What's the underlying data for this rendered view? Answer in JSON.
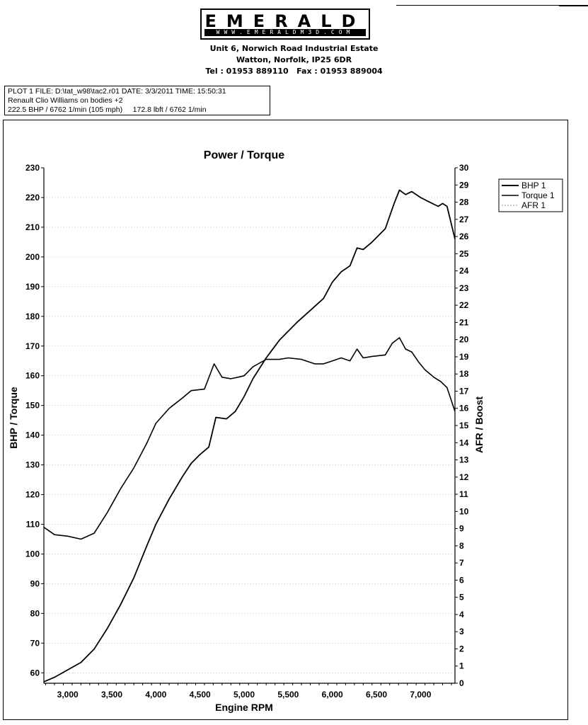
{
  "header": {
    "logo": "EMERALD",
    "logo_web": "WWW.EMERALDM3D.COM",
    "address_line1": "Unit 6, Norwich Road Industrial Estate",
    "address_line2": "Watton, Norfolk, IP25 6DR",
    "phone_line": "Tel : 01953 889110   Fax : 01953 889004"
  },
  "plot_info": {
    "line1": "PLOT 1 FILE: D:\\tat_w98\\tac2.r01  DATE: 3/3/2011  TIME: 15:50:31",
    "line2": "Renault Clio Williams on bodies +2",
    "line3": "222.5 BHP / 6762 1/min (105 mph)     172.8 lbft / 6762 1/min"
  },
  "chart_data": {
    "type": "line",
    "title": "Power / Torque",
    "xlabel": "Engine RPM",
    "ylabel": "BHP / Torque",
    "y2label": "AFR / Boost",
    "xlim": [
      2730,
      7390
    ],
    "ylim": [
      56.5,
      230
    ],
    "y2lim": [
      0,
      30
    ],
    "x_ticks": [
      3000,
      3500,
      4000,
      4500,
      5000,
      5500,
      6000,
      6500,
      7000
    ],
    "x_tick_labels": [
      "3,000",
      "3,500",
      "4,000",
      "4,500",
      "5,000",
      "5,500",
      "6,000",
      "6,500",
      "7,000"
    ],
    "y_ticks": [
      60,
      70,
      80,
      90,
      100,
      110,
      120,
      130,
      140,
      150,
      160,
      170,
      180,
      190,
      200,
      210,
      220,
      230
    ],
    "y2_ticks": [
      0,
      1,
      2,
      3,
      4,
      5,
      6,
      7,
      8,
      9,
      10,
      11,
      12,
      13,
      14,
      15,
      16,
      17,
      18,
      19,
      20,
      21,
      22,
      23,
      24,
      25,
      26,
      27,
      28,
      29,
      30
    ],
    "grid": true,
    "legend_position": "right",
    "series": [
      {
        "name": "BHP 1",
        "x": [
          2730,
          2850,
          3000,
          3150,
          3300,
          3450,
          3600,
          3750,
          3900,
          4000,
          4150,
          4300,
          4400,
          4500,
          4600,
          4680,
          4800,
          4900,
          5000,
          5100,
          5250,
          5400,
          5600,
          5750,
          5900,
          6000,
          6100,
          6200,
          6280,
          6350,
          6450,
          6600,
          6700,
          6760,
          6830,
          6900,
          7000,
          7100,
          7200,
          7250,
          7300,
          7390
        ],
        "values": [
          57,
          58.5,
          61,
          63.5,
          68,
          75,
          83,
          92,
          103,
          110,
          118.5,
          126,
          130.5,
          133.5,
          136,
          146,
          145.5,
          148,
          153,
          159,
          166,
          172,
          178,
          182,
          186,
          191.5,
          195,
          197,
          203,
          202.5,
          205,
          209.5,
          218,
          222.5,
          221,
          222,
          220,
          218.5,
          217,
          218,
          217,
          206
        ]
      },
      {
        "name": "Torque 1",
        "x": [
          2730,
          2850,
          3000,
          3150,
          3300,
          3450,
          3600,
          3750,
          3900,
          4000,
          4150,
          4300,
          4400,
          4550,
          4660,
          4750,
          4850,
          4930,
          5000,
          5100,
          5250,
          5400,
          5500,
          5650,
          5800,
          5900,
          6000,
          6100,
          6200,
          6280,
          6350,
          6450,
          6600,
          6680,
          6760,
          6830,
          6900,
          6980,
          7050,
          7150,
          7230,
          7300,
          7390
        ],
        "values": [
          109,
          106.5,
          106,
          105,
          107,
          114,
          122,
          129,
          137.5,
          144,
          149,
          152.5,
          155,
          155.5,
          164,
          159.5,
          159,
          159.5,
          160,
          163,
          165.5,
          165.5,
          166,
          165.5,
          164,
          164,
          165,
          166,
          165,
          169,
          166,
          166.5,
          167,
          171,
          172.8,
          169,
          168,
          164.5,
          162,
          159.5,
          158,
          156,
          148
        ]
      },
      {
        "name": "AFR 1",
        "x": [],
        "values": []
      }
    ]
  }
}
